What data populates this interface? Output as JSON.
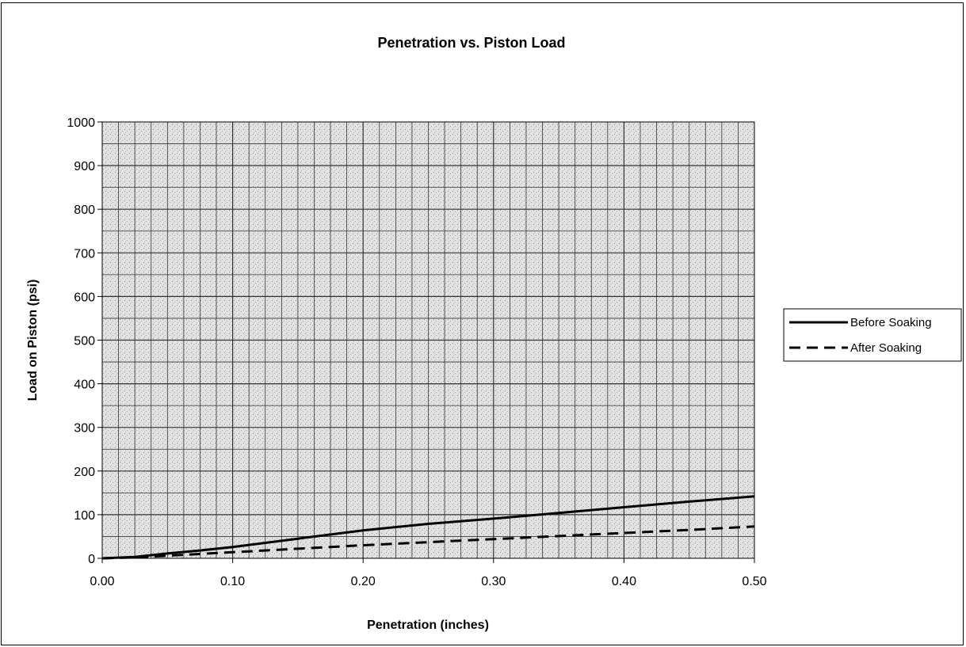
{
  "chart_data": {
    "type": "line",
    "title": "Penetration vs. Piston Load",
    "xlabel": "Penetration (inches)",
    "ylabel": "Load on Piston (psi)",
    "xlim": [
      0,
      0.5
    ],
    "ylim": [
      0,
      1000
    ],
    "x_ticks": [
      "0.00",
      "0.10",
      "0.20",
      "0.30",
      "0.40",
      "0.50"
    ],
    "y_ticks": [
      "0",
      "100",
      "200",
      "300",
      "400",
      "500",
      "600",
      "700",
      "800",
      "900",
      "1000"
    ],
    "grid": true,
    "legend_position": "right",
    "series": [
      {
        "name": "Before Soaking",
        "style": "solid",
        "color": "#000000",
        "x": [
          0.0,
          0.025,
          0.05,
          0.075,
          0.1,
          0.15,
          0.2,
          0.25,
          0.3,
          0.35,
          0.4,
          0.45,
          0.5
        ],
        "y": [
          0,
          3,
          11,
          18,
          26,
          45,
          64,
          79,
          91,
          104,
          117,
          130,
          142
        ]
      },
      {
        "name": "After Soaking",
        "style": "dashed",
        "color": "#000000",
        "x": [
          0.0,
          0.025,
          0.05,
          0.075,
          0.1,
          0.15,
          0.2,
          0.25,
          0.3,
          0.35,
          0.4,
          0.45,
          0.5
        ],
        "y": [
          0,
          2,
          6,
          10,
          14,
          22,
          30,
          37,
          44,
          51,
          58,
          65,
          73
        ]
      }
    ]
  }
}
